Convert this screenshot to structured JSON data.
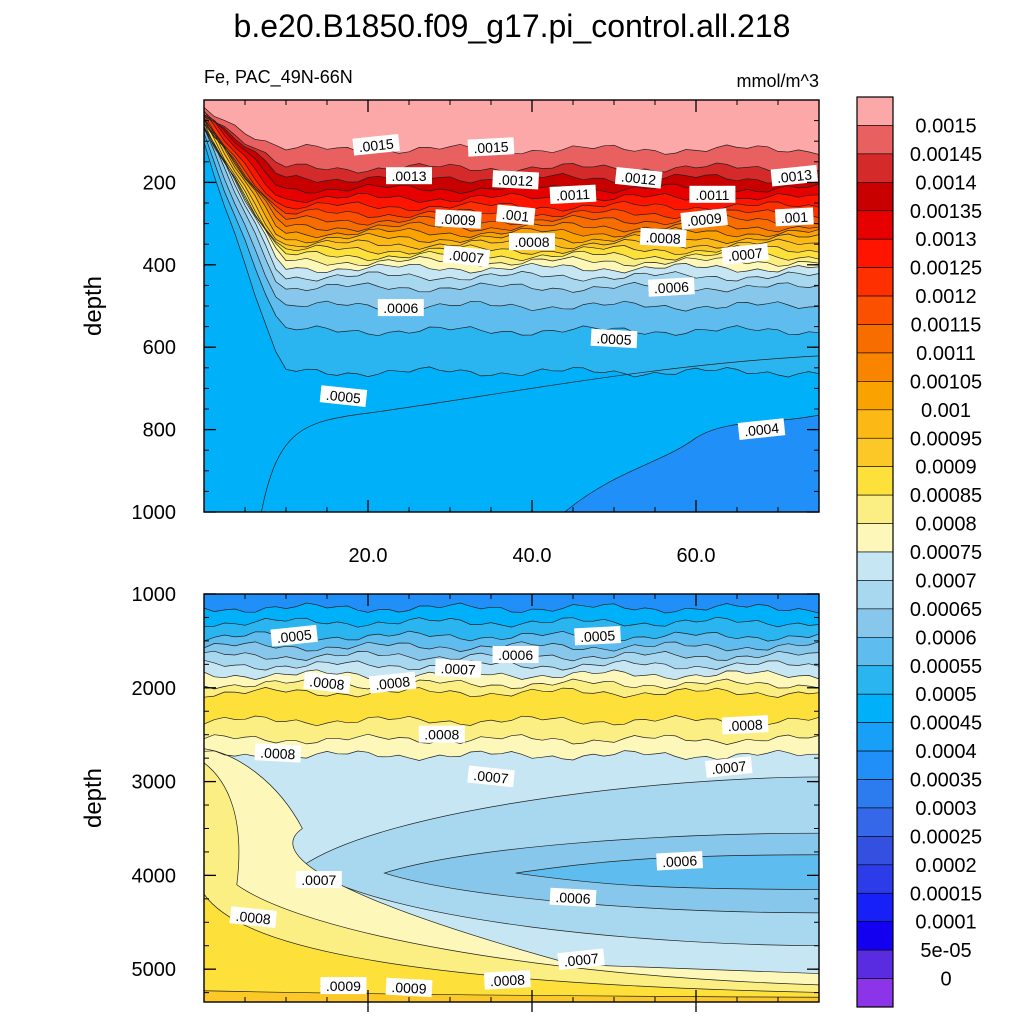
{
  "title": "b.e20.B1850.f09_g17.pi_control.all.218",
  "subtitle_left": "Fe, PAC_49N-66N",
  "subtitle_right": "mmol/m^3",
  "chart_data": [
    {
      "type": "heatmap",
      "name": "upper-panel",
      "ylabel": "depth",
      "xlabel": "",
      "xlim": [
        0,
        75
      ],
      "ylim": [
        1000,
        0
      ],
      "xticks": [
        20,
        40,
        60
      ],
      "xtick_labels": [
        "20.0",
        "40.0",
        "60.0"
      ],
      "yticks": [
        200,
        400,
        600,
        800,
        1000
      ],
      "ytick_labels": [
        "200",
        "400",
        "600",
        "800",
        "1000"
      ],
      "contour_labels": [
        {
          "text": ".0015",
          "x": 21,
          "y": 110
        },
        {
          "text": ".0015",
          "x": 35,
          "y": 115
        },
        {
          "text": ".0013",
          "x": 25,
          "y": 185
        },
        {
          "text": ".0012",
          "x": 38,
          "y": 195
        },
        {
          "text": ".0012",
          "x": 53,
          "y": 190
        },
        {
          "text": ".0013",
          "x": 72,
          "y": 185
        },
        {
          "text": ".0011",
          "x": 45,
          "y": 230
        },
        {
          "text": ".0011",
          "x": 62,
          "y": 230
        },
        {
          "text": ".0009",
          "x": 31,
          "y": 290
        },
        {
          "text": ".001",
          "x": 38,
          "y": 280
        },
        {
          "text": ".0009",
          "x": 61,
          "y": 290
        },
        {
          "text": ".001",
          "x": 72,
          "y": 285
        },
        {
          "text": ".0008",
          "x": 40,
          "y": 345
        },
        {
          "text": ".0008",
          "x": 56,
          "y": 335
        },
        {
          "text": ".0007",
          "x": 32,
          "y": 380
        },
        {
          "text": ".0007",
          "x": 66,
          "y": 375
        },
        {
          "text": ".0006",
          "x": 57,
          "y": 455
        },
        {
          "text": ".0006",
          "x": 24,
          "y": 505
        },
        {
          "text": ".0005",
          "x": 50,
          "y": 580
        },
        {
          "text": ".0005",
          "x": 17,
          "y": 720
        },
        {
          "text": ".0004",
          "x": 68,
          "y": 800
        }
      ],
      "bands": [
        {
          "depth": 120,
          "level": ">=0.0015",
          "color": "#fca8a8"
        },
        {
          "depth": 165,
          "level": "0.00145",
          "color": "#e86060"
        },
        {
          "depth": 190,
          "level": "0.0014",
          "color": "#d42a2a"
        },
        {
          "depth": 215,
          "level": "0.00135",
          "color": "#c80000"
        },
        {
          "depth": 238,
          "level": "0.0013",
          "color": "#e60000"
        },
        {
          "depth": 258,
          "level": "0.00125",
          "color": "#ff1400"
        },
        {
          "depth": 276,
          "level": "0.0012",
          "color": "#ff3000"
        },
        {
          "depth": 292,
          "level": "0.00115",
          "color": "#fa5000"
        },
        {
          "depth": 308,
          "level": "0.0011",
          "color": "#f86d00"
        },
        {
          "depth": 322,
          "level": "0.00105",
          "color": "#f88400"
        },
        {
          "depth": 336,
          "level": "0.001",
          "color": "#f9a200"
        },
        {
          "depth": 350,
          "level": "0.00095",
          "color": "#fcb814"
        },
        {
          "depth": 364,
          "level": "0.0009",
          "color": "#fcc828"
        },
        {
          "depth": 378,
          "level": "0.00085",
          "color": "#fde13a"
        },
        {
          "depth": 392,
          "level": "0.0008",
          "color": "#fbee82"
        },
        {
          "depth": 408,
          "level": "0.00075",
          "color": "#fdf8ba"
        },
        {
          "depth": 428,
          "level": "0.0007",
          "color": "#c6e6f4"
        },
        {
          "depth": 455,
          "level": "0.00065",
          "color": "#a8d8f0"
        },
        {
          "depth": 500,
          "level": "0.0006",
          "color": "#88c7ec"
        },
        {
          "depth": 560,
          "level": "0.00055",
          "color": "#5ebdee"
        },
        {
          "depth": 660,
          "level": "0.0005",
          "color": "#2ab4f0"
        },
        {
          "depth": 1000,
          "level": "0.00045",
          "color": "#00b0f8"
        }
      ],
      "inner_region": {
        "level": "0.0004",
        "color": "#2090f8"
      }
    },
    {
      "type": "heatmap",
      "name": "lower-panel",
      "ylabel": "depth",
      "xlabel": "",
      "xlim": [
        0,
        75
      ],
      "ylim": [
        5350,
        1000
      ],
      "xticks": [
        20,
        40,
        60
      ],
      "yticks": [
        1000,
        2000,
        3000,
        4000,
        5000
      ],
      "ytick_labels": [
        "1000",
        "2000",
        "3000",
        "4000",
        "5000"
      ],
      "contour_labels": [
        {
          "text": ".0005",
          "x": 11,
          "y": 1450
        },
        {
          "text": ".0005",
          "x": 48,
          "y": 1450
        },
        {
          "text": ".0006",
          "x": 38,
          "y": 1650
        },
        {
          "text": ".0007",
          "x": 31,
          "y": 1800
        },
        {
          "text": ".0008",
          "x": 15,
          "y": 1950
        },
        {
          "text": ".0008",
          "x": 23,
          "y": 1950
        },
        {
          "text": ".0008",
          "x": 66,
          "y": 2400
        },
        {
          "text": ".0008",
          "x": 29,
          "y": 2500
        },
        {
          "text": ".0008",
          "x": 9,
          "y": 2700
        },
        {
          "text": ".0007",
          "x": 35,
          "y": 2950
        },
        {
          "text": ".0007",
          "x": 64,
          "y": 2850
        },
        {
          "text": ".0006",
          "x": 58,
          "y": 3850
        },
        {
          "text": ".0007",
          "x": 14,
          "y": 4050
        },
        {
          "text": ".0006",
          "x": 45,
          "y": 4240
        },
        {
          "text": ".0008",
          "x": 6,
          "y": 4450
        },
        {
          "text": ".0007",
          "x": 46,
          "y": 4900
        },
        {
          "text": ".0008",
          "x": 37,
          "y": 5120
        },
        {
          "text": ".0009",
          "x": 17,
          "y": 5180
        },
        {
          "text": ".0009",
          "x": 25,
          "y": 5200
        }
      ],
      "bands": [
        {
          "depth": 1150,
          "level": "0.0004",
          "color": "#2090f8"
        },
        {
          "depth": 1300,
          "level": "0.00045",
          "color": "#00b0f8"
        },
        {
          "depth": 1450,
          "level": "0.0005",
          "color": "#2ab4f0"
        },
        {
          "depth": 1560,
          "level": "0.00055",
          "color": "#5ebdee"
        },
        {
          "depth": 1660,
          "level": "0.0006",
          "color": "#88c7ec"
        },
        {
          "depth": 1760,
          "level": "0.00065",
          "color": "#a8d8f0"
        },
        {
          "depth": 1860,
          "level": "0.0007",
          "color": "#c6e6f4"
        },
        {
          "depth": 1960,
          "level": "0.00075",
          "color": "#fdf8ba"
        },
        {
          "depth": 2050,
          "level": "0.0008",
          "color": "#fbee82"
        },
        {
          "depth": 2350,
          "level": "0.00085",
          "color": "#fde13a"
        },
        {
          "depth": 2550,
          "level": "0.0008",
          "color": "#fbee82"
        },
        {
          "depth": 2720,
          "level": "0.00075",
          "color": "#fdf8ba"
        },
        {
          "depth": 5350,
          "level": "0.0007",
          "color": "#c6e6f4"
        }
      ],
      "inner_regions": [
        {
          "level": "0.00065",
          "color": "#a8d8f0"
        },
        {
          "level": "0.0006",
          "color": "#88c7ec"
        },
        {
          "level": "0.00055",
          "color": "#5ebdee"
        },
        {
          "level": "0.00075",
          "color": "#fdf8ba"
        },
        {
          "level": "0.0008",
          "color": "#fbee82"
        },
        {
          "level": "0.00085",
          "color": "#fde13a"
        },
        {
          "level": "0.0009",
          "color": "#fcc828"
        }
      ]
    }
  ],
  "colorbar": {
    "labels": [
      "0.0015",
      "0.00145",
      "0.0014",
      "0.00135",
      "0.0013",
      "0.00125",
      "0.0012",
      "0.00115",
      "0.0011",
      "0.00105",
      "0.001",
      "0.00095",
      "0.0009",
      "0.00085",
      "0.0008",
      "0.00075",
      "0.0007",
      "0.00065",
      "0.0006",
      "0.00055",
      "0.0005",
      "0.00045",
      "0.0004",
      "0.00035",
      "0.0003",
      "0.00025",
      "0.0002",
      "0.00015",
      "0.0001",
      "5e-05",
      "0"
    ],
    "colors": [
      "#fca8a8",
      "#e86060",
      "#d42a2a",
      "#c80000",
      "#e60000",
      "#ff1400",
      "#ff3000",
      "#fa5000",
      "#f86d00",
      "#f88400",
      "#f9a200",
      "#fcb814",
      "#fcc828",
      "#fde13a",
      "#fbee82",
      "#fdf8ba",
      "#c6e6f4",
      "#a8d8f0",
      "#88c7ec",
      "#5ebdee",
      "#2ab4f0",
      "#00b0f8",
      "#18a0f8",
      "#2090f8",
      "#2c7cf0",
      "#3468e8",
      "#3450e0",
      "#2c3ce8",
      "#1820f8",
      "#1400f0",
      "#5a2ce0",
      "#8c34e8"
    ]
  }
}
